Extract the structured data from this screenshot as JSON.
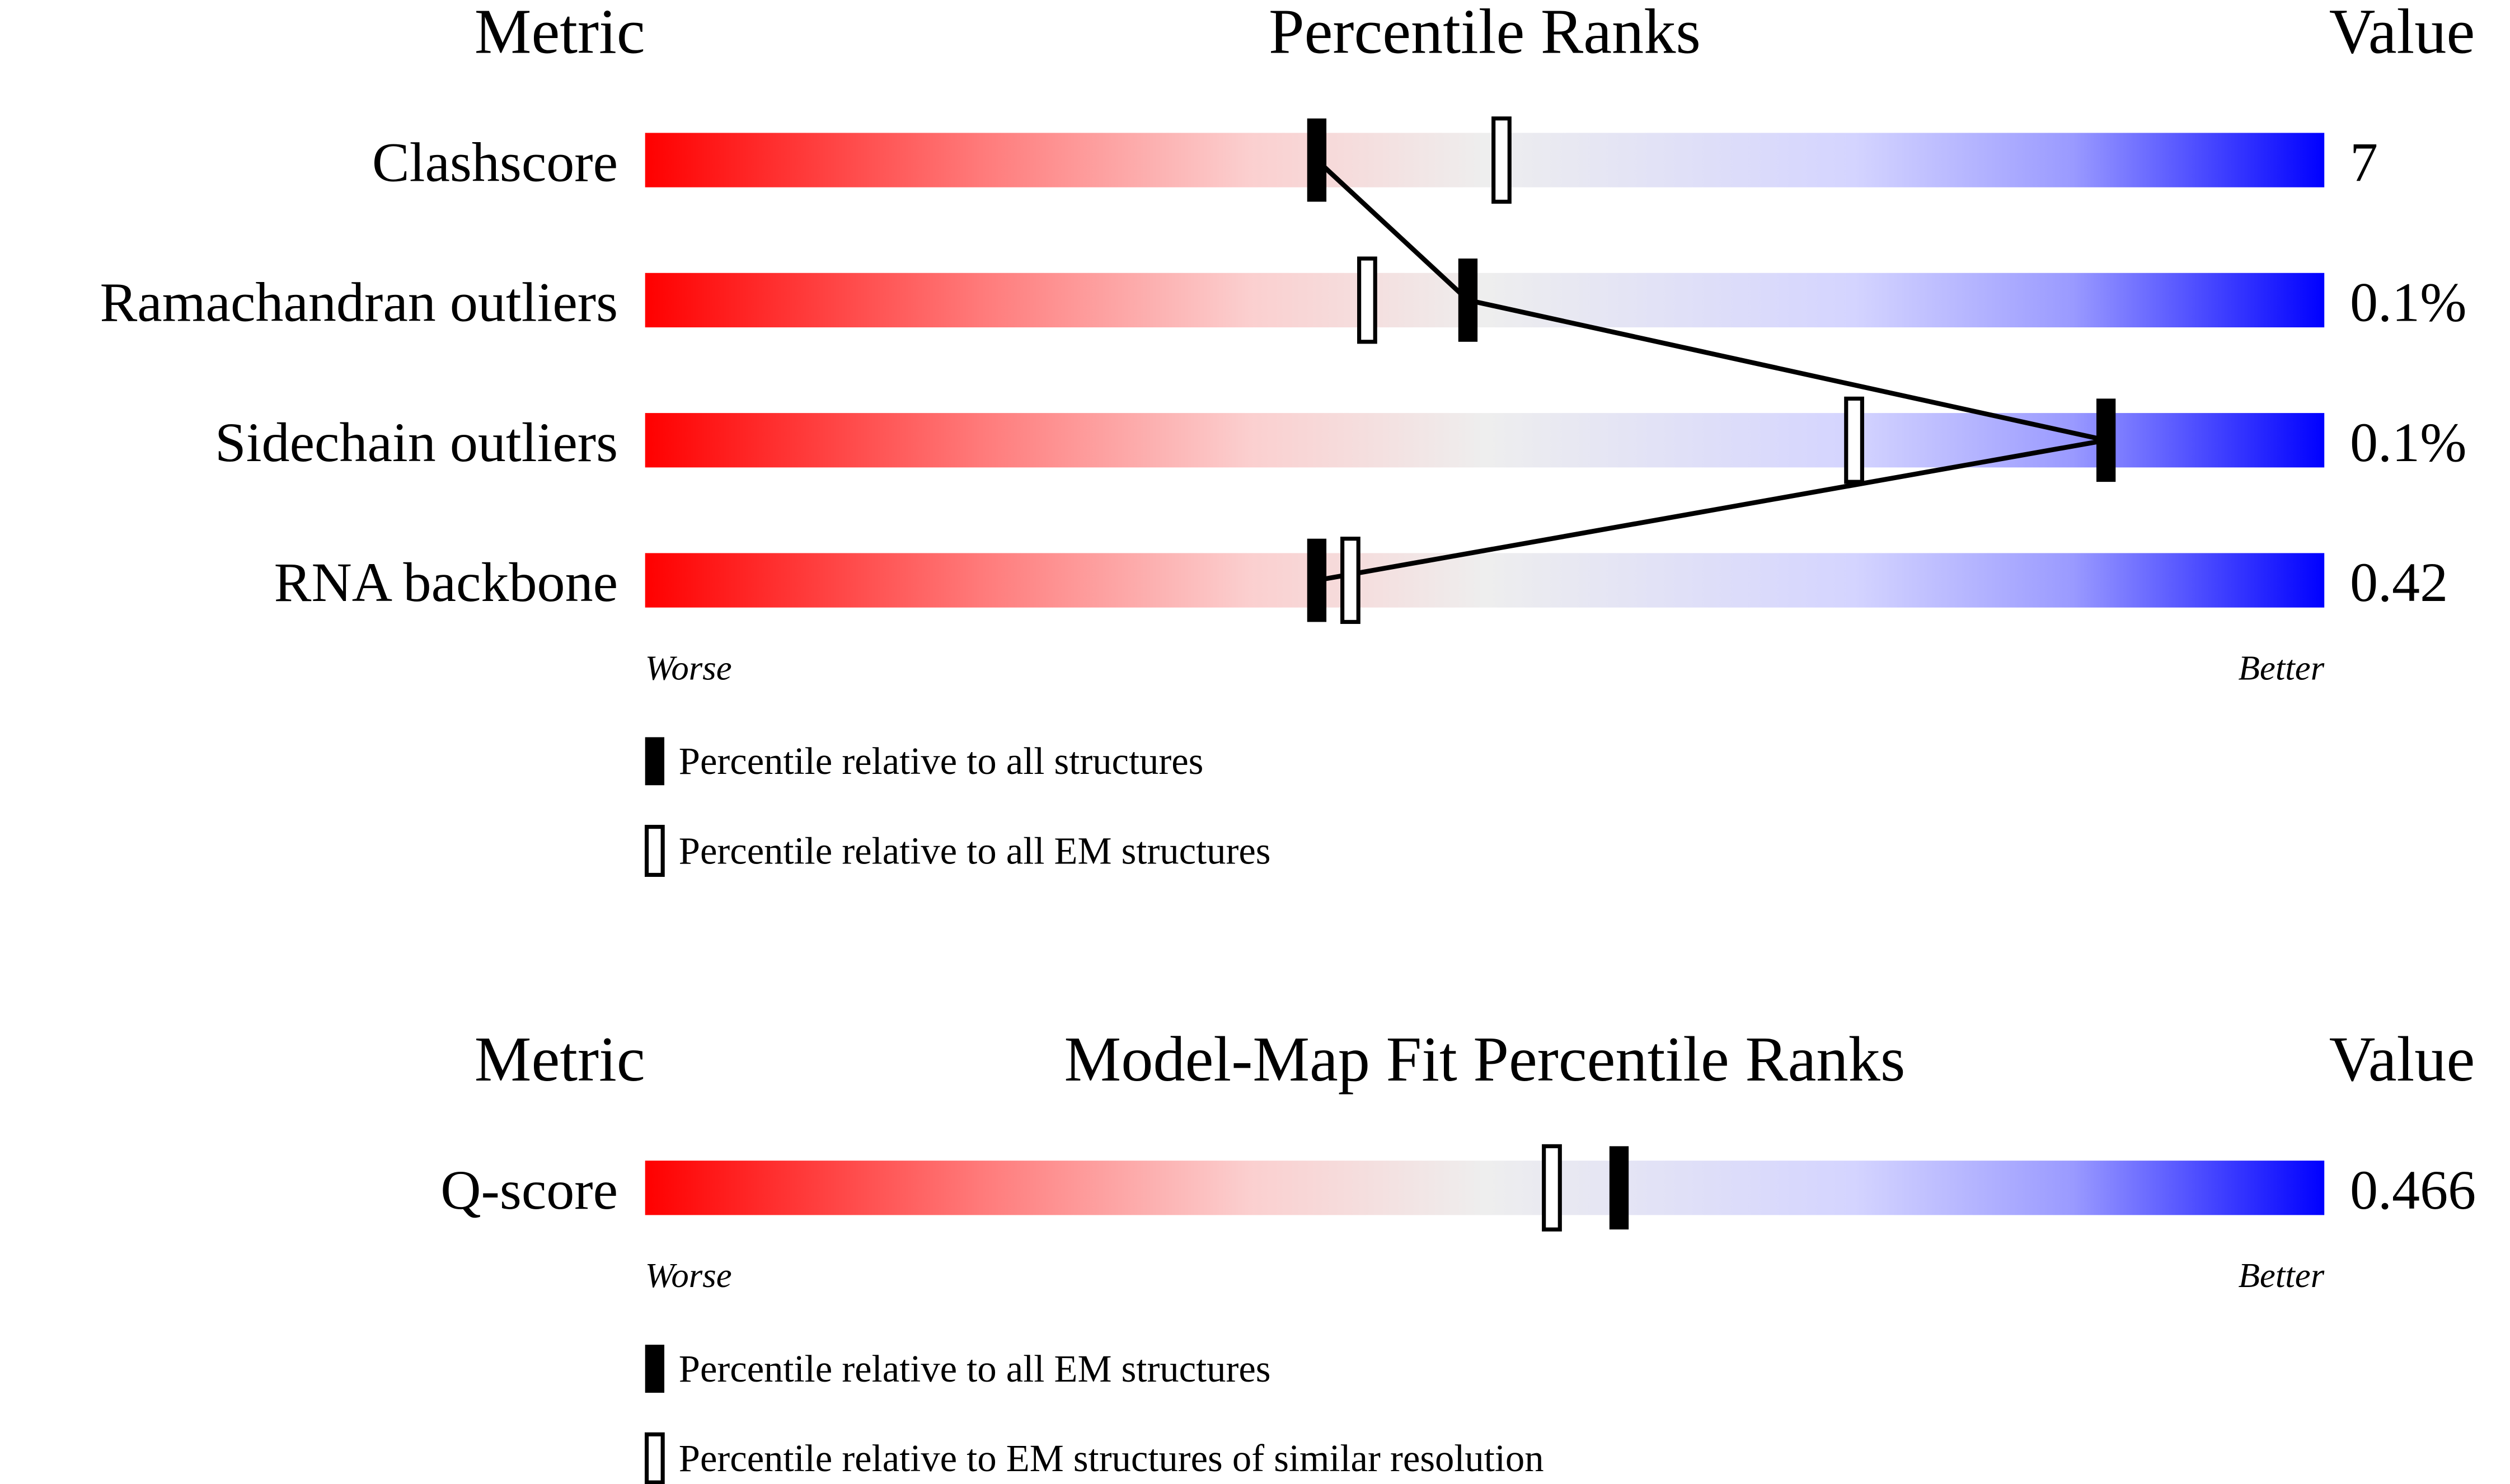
{
  "chart_data": [
    {
      "type": "percentile-slider",
      "header": {
        "metric": "Metric",
        "title": "Percentile Ranks",
        "value": "Value"
      },
      "categories": [
        "Clashscore",
        "Ramachandran outliers",
        "Sidechain outliers",
        "RNA backbone"
      ],
      "values": [
        7,
        0.1,
        0.1,
        0.42
      ],
      "value_labels": [
        "7",
        "0.1%",
        "0.1%",
        "0.42"
      ],
      "xlim": [
        0,
        100
      ],
      "series": [
        {
          "name": "Percentile relative to all structures",
          "color": "#000000",
          "values": [
            40,
            49,
            87,
            40
          ],
          "connected": true
        },
        {
          "name": "Percentile relative to all EM structures",
          "color": "#ffffff",
          "values": [
            51,
            43,
            72,
            42
          ]
        }
      ],
      "worse": "Worse",
      "better": "Better"
    },
    {
      "type": "percentile-slider",
      "header": {
        "metric": "Metric",
        "title": "Model-Map Fit Percentile Ranks",
        "value": "Value"
      },
      "categories": [
        "Q-score"
      ],
      "values": [
        0.466
      ],
      "value_labels": [
        "0.466"
      ],
      "xlim": [
        0,
        100
      ],
      "series": [
        {
          "name": "Percentile relative to all EM structures",
          "color": "#000000",
          "values": [
            58
          ]
        },
        {
          "name": "Percentile relative to EM structures of similar resolution",
          "color": "#ffffff",
          "values": [
            54
          ]
        }
      ],
      "worse": "Worse",
      "better": "Better"
    }
  ]
}
